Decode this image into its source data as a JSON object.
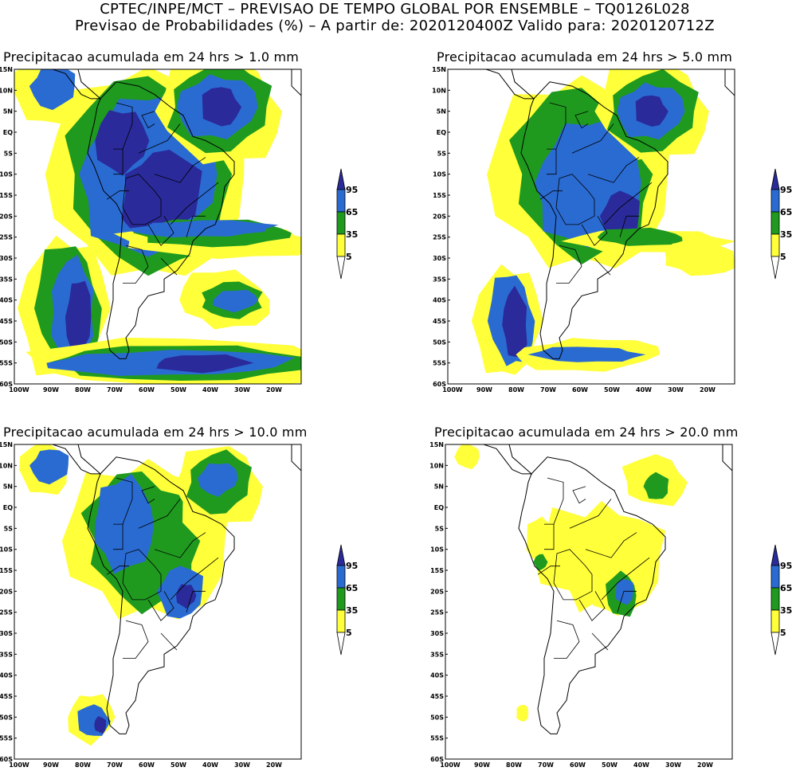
{
  "header": {
    "line1": "CPTEC/INPE/MCT – PREVISAO DE TEMPO GLOBAL POR ENSEMBLE – TQ0126L028",
    "line2": "Previsao de Probabilidades (%) –   A partir de: 2020120400Z  Valido para: 2020120712Z"
  },
  "colors": {
    "yellow": "#ffff3a",
    "green": "#1f9a1f",
    "blue": "#2a6bd2",
    "darkblue": "#2a2a9a",
    "border": "#000000"
  },
  "legend": {
    "labels": [
      "95",
      "65",
      "35",
      "5"
    ]
  },
  "axes": {
    "lat_labels": [
      "15N",
      "10N",
      "5N",
      "EQ",
      "5S",
      "10S",
      "15S",
      "20S",
      "25S",
      "30S",
      "35S",
      "40S",
      "45S",
      "50S",
      "55S",
      "60S"
    ],
    "lon_labels": [
      "100W",
      "90W",
      "80W",
      "70W",
      "60W",
      "50W",
      "40W",
      "30W",
      "20W"
    ]
  },
  "panels": [
    {
      "title": "Precipitacao acumulada em 24 hrs > 1.0 mm"
    },
    {
      "title": "Precipitacao acumulada em 24 hrs > 5.0 mm"
    },
    {
      "title": "Precipitacao acumulada em 24 hrs > 10.0 mm"
    },
    {
      "title": "Precipitacao acumulada em 24 hrs > 20.0 mm"
    }
  ]
}
